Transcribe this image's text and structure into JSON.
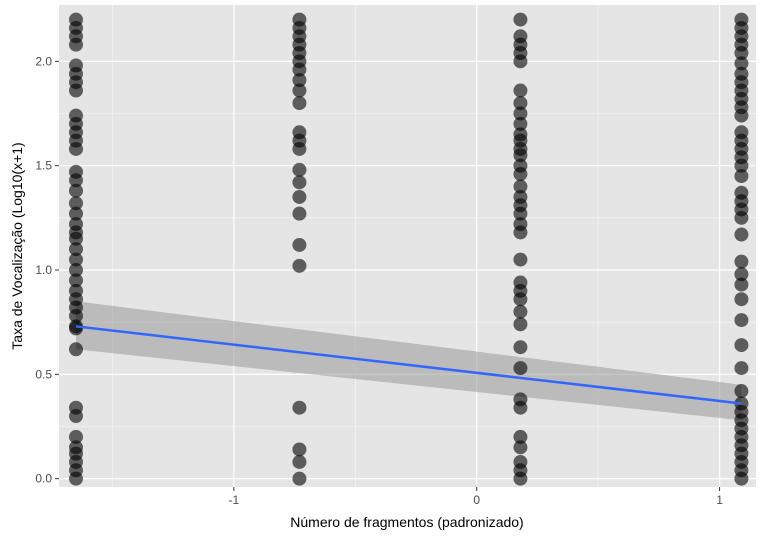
{
  "chart_data": {
    "type": "scatter",
    "title": "",
    "xlabel": "Número de fragmentos (padronizado)",
    "ylabel": "Taxa de Vocalização (Log10(x+1)",
    "xlim": [
      -1.72,
      1.15
    ],
    "ylim": [
      -0.04,
      2.27
    ],
    "x_ticks": [
      -1,
      0,
      1
    ],
    "x_tick_labels": [
      "-1",
      "0",
      "1"
    ],
    "y_ticks": [
      0.0,
      0.5,
      1.0,
      1.5,
      2.0
    ],
    "y_tick_labels": [
      "0.0",
      "0.5",
      "1.0",
      "1.5",
      "2.0"
    ],
    "grid": true,
    "legend": "none",
    "groups": [
      {
        "x": -1.65,
        "y": [
          0.0,
          0.04,
          0.08,
          0.12,
          0.15,
          0.2,
          0.3,
          0.34,
          0.62,
          0.72,
          0.73,
          0.78,
          0.82,
          0.86,
          0.9,
          0.95,
          1.0,
          1.05,
          1.1,
          1.15,
          1.18,
          1.22,
          1.27,
          1.32,
          1.38,
          1.43,
          1.47,
          1.58,
          1.62,
          1.66,
          1.7,
          1.74,
          1.86,
          1.9,
          1.94,
          1.98,
          2.08,
          2.12,
          2.16,
          2.2
        ]
      },
      {
        "x": -0.73,
        "y": [
          0.0,
          0.08,
          0.14,
          0.34,
          1.02,
          1.12,
          1.27,
          1.35,
          1.42,
          1.48,
          1.58,
          1.62,
          1.66,
          1.8,
          1.86,
          1.91,
          1.96,
          2.0,
          2.04,
          2.08,
          2.12,
          2.16,
          2.2
        ]
      },
      {
        "x": 0.18,
        "y": [
          0.0,
          0.04,
          0.08,
          0.15,
          0.2,
          0.34,
          0.38,
          0.53,
          0.63,
          0.74,
          0.8,
          0.86,
          0.9,
          0.94,
          1.05,
          1.18,
          1.22,
          1.27,
          1.31,
          1.35,
          1.4,
          1.46,
          1.5,
          1.55,
          1.58,
          1.62,
          1.65,
          1.7,
          1.75,
          1.8,
          1.86,
          2.0,
          2.04,
          2.08,
          2.12,
          2.2
        ]
      },
      {
        "x": 1.09,
        "y": [
          0.0,
          0.04,
          0.08,
          0.12,
          0.16,
          0.2,
          0.24,
          0.28,
          0.32,
          0.36,
          0.42,
          0.53,
          0.64,
          0.76,
          0.86,
          0.93,
          0.98,
          1.04,
          1.17,
          1.25,
          1.29,
          1.33,
          1.37,
          1.45,
          1.5,
          1.54,
          1.58,
          1.62,
          1.66,
          1.74,
          1.78,
          1.82,
          1.86,
          1.9,
          1.94,
          1.99,
          2.04,
          2.08,
          2.12,
          2.16,
          2.2
        ]
      }
    ],
    "trend": {
      "x": [
        -1.65,
        1.09
      ],
      "y": [
        0.73,
        0.36
      ]
    },
    "band": {
      "x": [
        -1.65,
        1.09
      ],
      "lower": [
        0.62,
        0.28
      ],
      "upper": [
        0.85,
        0.45
      ]
    },
    "colors": {
      "panel": "#e5e5e5",
      "grid_major": "#ffffff",
      "point": "#000000",
      "trend": "#3366ff",
      "band": "#999999"
    }
  }
}
